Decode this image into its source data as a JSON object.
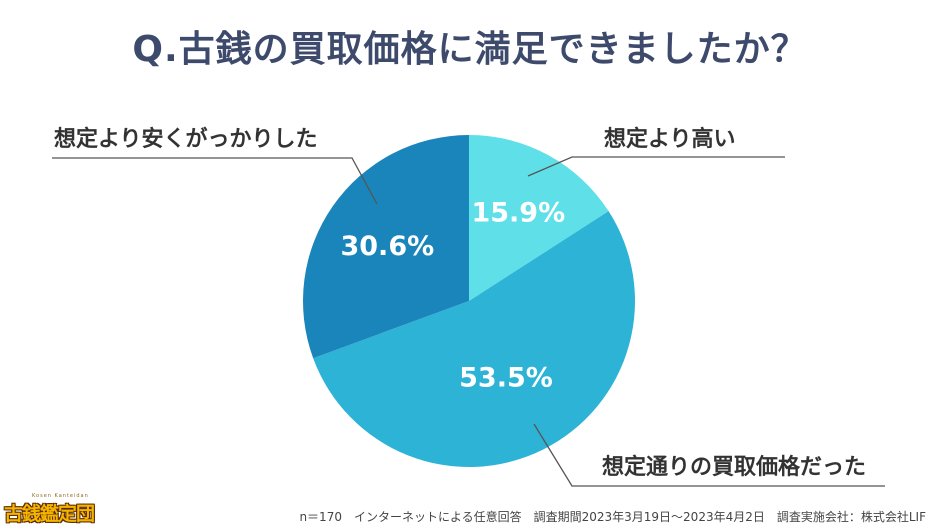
{
  "title": "Q.古銭の買取価格に満足できましたか？",
  "chart_data": {
    "type": "pie",
    "title": "Q.古銭の買取価格に満足できましたか？",
    "start": "12 o'clock",
    "direction": "clockwise",
    "slices": [
      {
        "label": "想定より高い",
        "value": 15.9,
        "value_label": "15.9%",
        "color": "#5fe0e8"
      },
      {
        "label": "想定通りの買取価格だった",
        "value": 53.5,
        "value_label": "53.5%",
        "color": "#2db3d6"
      },
      {
        "label": "想定より安くがっかりした",
        "value": 30.6,
        "value_label": "30.6%",
        "color": "#1a85bb"
      }
    ]
  },
  "footer": "n＝170　インターネットによる任意回答　調査期間2023年3月19日～2023年4月2日　調査実施会社：株式会社LIF",
  "logo": {
    "text": "古銭鑑定団",
    "subtext": "Kosen Kanteidan"
  }
}
